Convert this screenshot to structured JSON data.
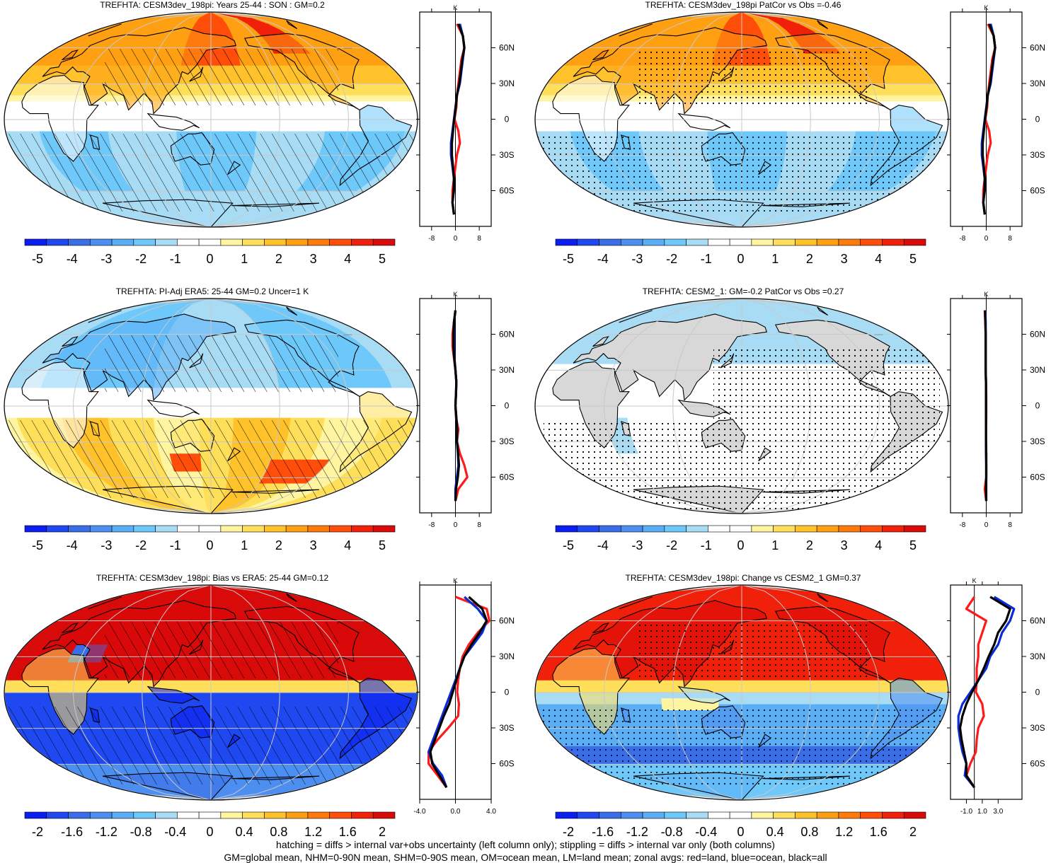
{
  "footnotes": [
    "hatching = diffs > internal var+obs uncertainty (left column only); stippling = diffs > internal var only (both columns)",
    "GM=global mean, NHM=0-90N mean, SHM=0-90S mean, OM=ocean mean, LM=land mean; zonal avgs: red=land, blue=ocean, black=all"
  ],
  "colors": {
    "land": "#d8d8d8",
    "coast": "#000000",
    "grid": "#c8c8c8",
    "zonal_land": "#ff1a1a",
    "zonal_ocean": "#0a2bd6",
    "zonal_all": "#000000",
    "colorbar": [
      "#0a1ef2",
      "#1f48f0",
      "#3a6ee8",
      "#4d8ff0",
      "#5aaef5",
      "#6ec8fa",
      "#a8dcf5",
      "#ffffff",
      "#ffffff",
      "#fff5a0",
      "#ffdf5a",
      "#ffc22a",
      "#ffa012",
      "#ff7a0a",
      "#ff4d0a",
      "#f0200a",
      "#d90a0a"
    ]
  },
  "chart_data": [
    {
      "type": "heatmap",
      "title": "TREFHTA: CESM3dev_198pi: Years 25-44 : SON : GM=0.2",
      "colorbar_labels": [
        "-5",
        "-4",
        "-3",
        "-2",
        "-1",
        "0",
        "1",
        "2",
        "3",
        "4",
        "5"
      ],
      "overlay": "hatching",
      "pattern": "standard",
      "zonal": {
        "unit": "K",
        "xlim": [
          -12,
          12
        ],
        "xticks": [
          "-8",
          "0",
          "8"
        ],
        "ylim": [
          -90,
          90
        ],
        "yticks": [
          "60N",
          "30N",
          "0",
          "30S",
          "60S"
        ],
        "lat": [
          80,
          70,
          60,
          50,
          40,
          30,
          20,
          10,
          0,
          -10,
          -20,
          -30,
          -40,
          -50,
          -60,
          -70,
          -80
        ],
        "land": [
          0.5,
          2.5,
          3.0,
          2.0,
          1.5,
          1.0,
          0.5,
          0.3,
          -0.3,
          1.0,
          1.5,
          0.5,
          0,
          -0.5,
          -1.0,
          -1.0,
          -0.5
        ],
        "ocean": [
          1.5,
          2.5,
          3.0,
          2.5,
          2.0,
          1.5,
          0.5,
          0,
          -0.5,
          -1.0,
          -1.5,
          -1.5,
          -1.0,
          -0.5,
          -0.5,
          -1.0,
          -0.5
        ],
        "all": [
          1.0,
          2.5,
          3.0,
          2.3,
          1.8,
          1.3,
          0.5,
          0.1,
          -0.4,
          -0.8,
          -1.2,
          -1.2,
          -0.8,
          -0.5,
          -0.6,
          -1.0,
          -0.5
        ]
      }
    },
    {
      "type": "heatmap",
      "title": "TREFHTA: CESM3dev_198pi PatCor vs Obs =-0.46",
      "colorbar_labels": [
        "-5",
        "-4",
        "-3",
        "-2",
        "-1",
        "0",
        "1",
        "2",
        "3",
        "4",
        "5"
      ],
      "overlay": "stipple",
      "pattern": "standard",
      "zonal": {
        "unit": "K",
        "xlim": [
          -12,
          12
        ],
        "xticks": [
          "-8",
          "0",
          "8"
        ],
        "ylim": [
          -90,
          90
        ],
        "yticks": [
          "60N",
          "30N",
          "0",
          "30S",
          "60S"
        ],
        "lat": [
          80,
          70,
          60,
          50,
          40,
          30,
          20,
          10,
          0,
          -10,
          -20,
          -30,
          -40,
          -50,
          -60,
          -70,
          -80
        ],
        "land": [
          0.5,
          2.5,
          3.0,
          2.0,
          1.5,
          1.0,
          0.5,
          0.3,
          -0.3,
          1.0,
          1.5,
          0.5,
          0,
          -0.5,
          -1.0,
          -1.0,
          -0.5
        ],
        "ocean": [
          1.5,
          2.5,
          3.0,
          2.5,
          2.0,
          1.5,
          0.5,
          0,
          -0.5,
          -1.0,
          -1.5,
          -1.5,
          -1.0,
          -0.5,
          -0.5,
          -1.0,
          -0.5
        ],
        "all": [
          1.0,
          2.5,
          3.0,
          2.3,
          1.8,
          1.3,
          0.5,
          0.1,
          -0.4,
          -0.8,
          -1.2,
          -1.2,
          -0.8,
          -0.5,
          -0.6,
          -1.0,
          -0.5
        ]
      }
    },
    {
      "type": "heatmap",
      "title": "TREFHTA: PI-Adj ERA5: 25-44 GM=0.2 Uncer=1 K",
      "colorbar_labels": [
        "-5",
        "-4",
        "-3",
        "-2",
        "-1",
        "0",
        "1",
        "2",
        "3",
        "4",
        "5"
      ],
      "overlay": "hatching",
      "pattern": "era5",
      "zonal": {
        "unit": "K",
        "xlim": [
          -12,
          12
        ],
        "xticks": [
          "-8",
          "0",
          "8"
        ],
        "ylim": [
          -90,
          90
        ],
        "yticks": [
          "60N",
          "30N",
          "0",
          "30S",
          "60S"
        ],
        "lat": [
          80,
          70,
          60,
          50,
          40,
          30,
          20,
          10,
          0,
          -10,
          -20,
          -30,
          -40,
          -50,
          -60,
          -70,
          -80
        ],
        "land": [
          0,
          -0.5,
          -1.0,
          -1.0,
          -0.5,
          0,
          0.3,
          0.2,
          0,
          0.2,
          1.0,
          0.5,
          1.5,
          3.0,
          4.0,
          1.0,
          0
        ],
        "ocean": [
          0,
          -0.5,
          -0.5,
          -0.5,
          -0.3,
          0,
          0.3,
          0.2,
          0,
          0.3,
          0.5,
          0.5,
          0.8,
          1.0,
          0.5,
          0,
          0
        ],
        "all": [
          0,
          -0.5,
          -0.7,
          -0.7,
          -0.4,
          0,
          0.3,
          0.2,
          0,
          0.3,
          0.6,
          0.5,
          0.9,
          1.2,
          0.8,
          0.2,
          0
        ]
      }
    },
    {
      "type": "heatmap",
      "title": "TREFHTA: CESM2_1: GM=-0.2 PatCor vs Obs =0.27",
      "colorbar_labels": [
        "-5",
        "-4",
        "-3",
        "-2",
        "-1",
        "0",
        "1",
        "2",
        "3",
        "4",
        "5"
      ],
      "overlay": "stipple",
      "pattern": "cesm2",
      "zonal": {
        "unit": "K",
        "xlim": [
          -12,
          12
        ],
        "xticks": [
          "-8",
          "0",
          "8"
        ],
        "ylim": [
          -90,
          90
        ],
        "yticks": [
          "60N",
          "30N",
          "0",
          "30S",
          "60S"
        ],
        "lat": [
          80,
          70,
          60,
          50,
          40,
          30,
          20,
          10,
          0,
          -10,
          -20,
          -30,
          -40,
          -50,
          -60,
          -70,
          -80
        ],
        "land": [
          -0.5,
          -0.3,
          -0.2,
          -0.2,
          -0.2,
          -0.2,
          -0.1,
          0,
          0,
          0,
          -0.1,
          -0.1,
          0,
          0,
          0,
          -0.5,
          0
        ],
        "ocean": [
          -0.3,
          -0.2,
          -0.2,
          -0.2,
          -0.2,
          -0.2,
          -0.1,
          -0.1,
          -0.1,
          -0.1,
          -0.1,
          -0.1,
          -0.1,
          0,
          0,
          0,
          0
        ],
        "all": [
          -0.4,
          -0.3,
          -0.2,
          -0.2,
          -0.2,
          -0.2,
          -0.1,
          -0.1,
          -0.1,
          -0.1,
          -0.1,
          -0.1,
          0,
          0,
          0,
          -0.1,
          0
        ]
      }
    },
    {
      "type": "heatmap",
      "title": "TREFHTA: CESM3dev_198pi: Bias vs ERA5: 25-44  GM=0.12",
      "colorbar_labels": [
        "-2",
        "-1.6",
        "-1.2",
        "-0.8",
        "-0.4",
        "0",
        "0.4",
        "0.8",
        "1.2",
        "1.6",
        "2"
      ],
      "overlay": "hatching",
      "pattern": "bias",
      "zonal": {
        "unit": "K",
        "xlim": [
          -4,
          4
        ],
        "xticks": [
          "-4.0",
          "0.0",
          "4.0"
        ],
        "ylim": [
          -90,
          90
        ],
        "yticks": [
          "60N",
          "30N",
          "0",
          "30S",
          "60S"
        ],
        "lat": [
          80,
          70,
          60,
          50,
          40,
          30,
          20,
          10,
          0,
          -10,
          -20,
          -30,
          -40,
          -50,
          -60,
          -70,
          -80
        ],
        "land": [
          0,
          3.5,
          3.8,
          2.5,
          1.5,
          0.8,
          0.5,
          0.3,
          0.2,
          0.4,
          0.3,
          -0.8,
          -2.0,
          -3.0,
          -3.0,
          -2.0,
          -1.0
        ],
        "ocean": [
          1.0,
          2.5,
          3.5,
          3.0,
          2.0,
          1.0,
          0.5,
          0,
          -0.5,
          -1.0,
          -1.5,
          -2.0,
          -2.5,
          -3.0,
          -2.5,
          -1.5,
          -1.0
        ],
        "all": [
          1.5,
          3.0,
          3.5,
          2.7,
          1.8,
          1.0,
          0.5,
          0.1,
          -0.3,
          -0.7,
          -1.3,
          -1.8,
          -2.3,
          -2.8,
          -2.6,
          -1.8,
          -1.0
        ]
      }
    },
    {
      "type": "heatmap",
      "title": "TREFHTA: CESM3dev_198pi: Change vs CESM2_1 GM=0.37",
      "colorbar_labels": [
        "-2",
        "-1.6",
        "-1.2",
        "-0.8",
        "-0.4",
        "0",
        "0.4",
        "0.8",
        "1.2",
        "1.6",
        "2"
      ],
      "overlay": "stipple",
      "pattern": "change",
      "zonal": {
        "unit": "K",
        "xlim": [
          -3,
          6
        ],
        "xticks": [
          "-1.0",
          "1.0",
          "3.0"
        ],
        "ylim": [
          -90,
          90
        ],
        "yticks": [
          "60N",
          "30N",
          "0",
          "30S",
          "60S"
        ],
        "lat": [
          80,
          70,
          60,
          50,
          40,
          30,
          20,
          10,
          0,
          -10,
          -20,
          -30,
          -40,
          -50,
          -60,
          -70,
          -80
        ],
        "land": [
          0,
          -1.0,
          1.5,
          1.0,
          0.5,
          0.5,
          0.3,
          0.3,
          0.2,
          1.0,
          1.2,
          0.5,
          0.3,
          0.2,
          -0.5,
          -1.0,
          0
        ],
        "ocean": [
          2.5,
          5.0,
          4.5,
          3.5,
          3.0,
          2.0,
          1.5,
          0.5,
          -0.5,
          -1.5,
          -2.0,
          -2.0,
          -1.8,
          -1.5,
          -1.0,
          -1.2,
          0
        ],
        "all": [
          2.0,
          4.5,
          4.0,
          3.0,
          2.5,
          1.8,
          1.2,
          0.5,
          -0.3,
          -1.0,
          -1.5,
          -1.8,
          -1.6,
          -1.3,
          -1.0,
          -1.0,
          0
        ]
      }
    }
  ]
}
